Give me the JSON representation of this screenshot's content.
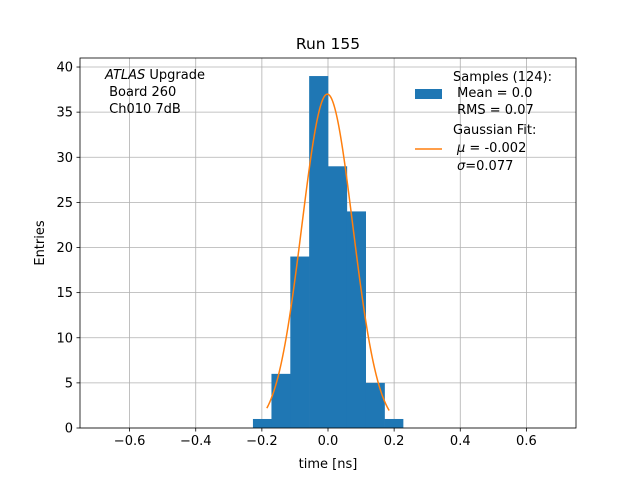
{
  "chart_data": {
    "type": "bar",
    "title": "Run 155",
    "xlabel": "time [ns]",
    "ylabel": "Entries",
    "xlim": [
      -0.75,
      0.75
    ],
    "ylim": [
      0,
      41
    ],
    "grid": true,
    "legend_position": "top-right",
    "xticks": [
      -0.6,
      -0.4,
      -0.2,
      0.0,
      0.2,
      0.4,
      0.6
    ],
    "xtick_labels": [
      "−0.6",
      "−0.4",
      "−0.2",
      "0.0",
      "0.2",
      "0.4",
      "0.6"
    ],
    "yticks": [
      0,
      5,
      10,
      15,
      20,
      25,
      30,
      35,
      40
    ],
    "ytick_labels": [
      "0",
      "5",
      "10",
      "15",
      "20",
      "25",
      "30",
      "35",
      "40"
    ],
    "annotation": {
      "italic": "ATLAS",
      "rest": " Upgrade",
      "line2": " Board 260",
      "line3": " Ch010 7dB"
    },
    "histogram": {
      "name": "Samples (124):",
      "color": "#1f77b4",
      "bins": [
        {
          "x0": -0.227,
          "x1": -0.171,
          "count": 1
        },
        {
          "x0": -0.171,
          "x1": -0.114,
          "count": 6
        },
        {
          "x0": -0.114,
          "x1": -0.057,
          "count": 19
        },
        {
          "x0": -0.057,
          "x1": 0.0,
          "count": 39
        },
        {
          "x0": 0.0,
          "x1": 0.057,
          "count": 29
        },
        {
          "x0": 0.057,
          "x1": 0.114,
          "count": 24
        },
        {
          "x0": 0.114,
          "x1": 0.171,
          "count": 5
        },
        {
          "x0": 0.171,
          "x1": 0.227,
          "count": 1
        }
      ]
    },
    "fit": {
      "name": "Gaussian Fit:",
      "color": "#ff7f0e",
      "amplitude": 37,
      "mu": -0.002,
      "sigma": 0.077,
      "x_range": [
        -0.185,
        0.185
      ]
    },
    "legend": {
      "hist_line1": "Samples (124):",
      "hist_line2": " Mean = 0.0",
      "hist_line3": " RMS = 0.07",
      "fit_line1": "Gaussian Fit:",
      "fit_mu_symbol": "μ",
      "fit_mu_value": " = -0.002",
      "fit_sigma_symbol": "σ",
      "fit_sigma_value": "=0.077"
    }
  }
}
